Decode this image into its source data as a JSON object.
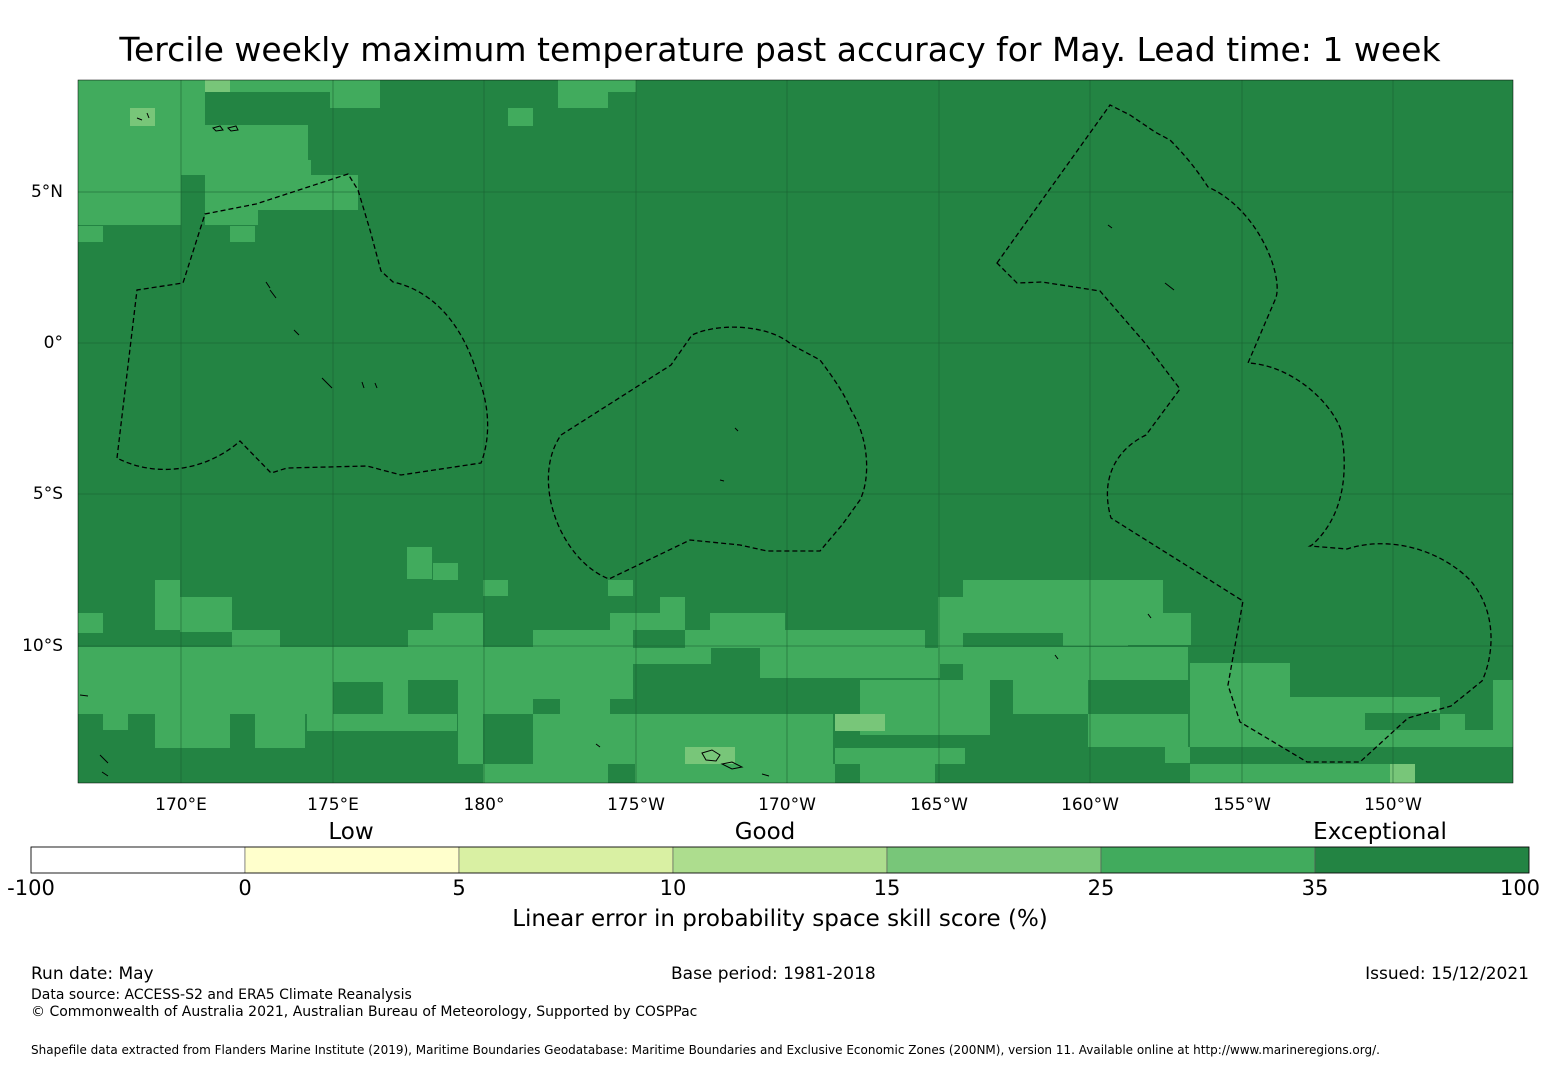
{
  "title": "Tercile weekly maximum temperature past accuracy for May. Lead time: 1 week",
  "map": {
    "longitude_ticks": [
      "170°E",
      "175°E",
      "180°",
      "175°W",
      "170°W",
      "165°W",
      "160°W",
      "155°W",
      "150°W"
    ],
    "latitude_ticks": [
      "5°N",
      "0°",
      "5°S",
      "10°S"
    ],
    "colors": {
      "cat_25_35": "#41ab5d",
      "cat_35_100": "#238443",
      "cat_15_25": "#78c679",
      "gridline": "#1a5e30",
      "boundary": "#000000"
    },
    "eez_boundary_style": "dashed"
  },
  "legend": {
    "categories": [
      "Low",
      "Good",
      "Exceptional"
    ],
    "ticks": [
      "-100",
      "0",
      "5",
      "10",
      "15",
      "25",
      "35",
      "100"
    ],
    "colors": [
      "#ffffff",
      "#ffffcc",
      "#d9f0a3",
      "#addd8e",
      "#78c679",
      "#41ab5d",
      "#238443"
    ],
    "label": "Linear error in probability space skill score (%)"
  },
  "footer": {
    "run_date": "Run date: May",
    "base_period": "Base period: 1981-2018",
    "issued": "Issued: 15/12/2021",
    "data_source": "Data source: ACCESS-S2 and ERA5 Climate Reanalysis",
    "copyright": "© Commonwealth of Australia 2021, Australian Bureau of Meteorology, Supported by COSPPac",
    "shapefile_credit": "Shapefile data extracted from Flanders Marine Institute (2019), Maritime Boundaries Geodatabase: Maritime Boundaries and Exclusive Economic Zones (200NM), version 11. Available online at http://www.marineregions.org/."
  }
}
